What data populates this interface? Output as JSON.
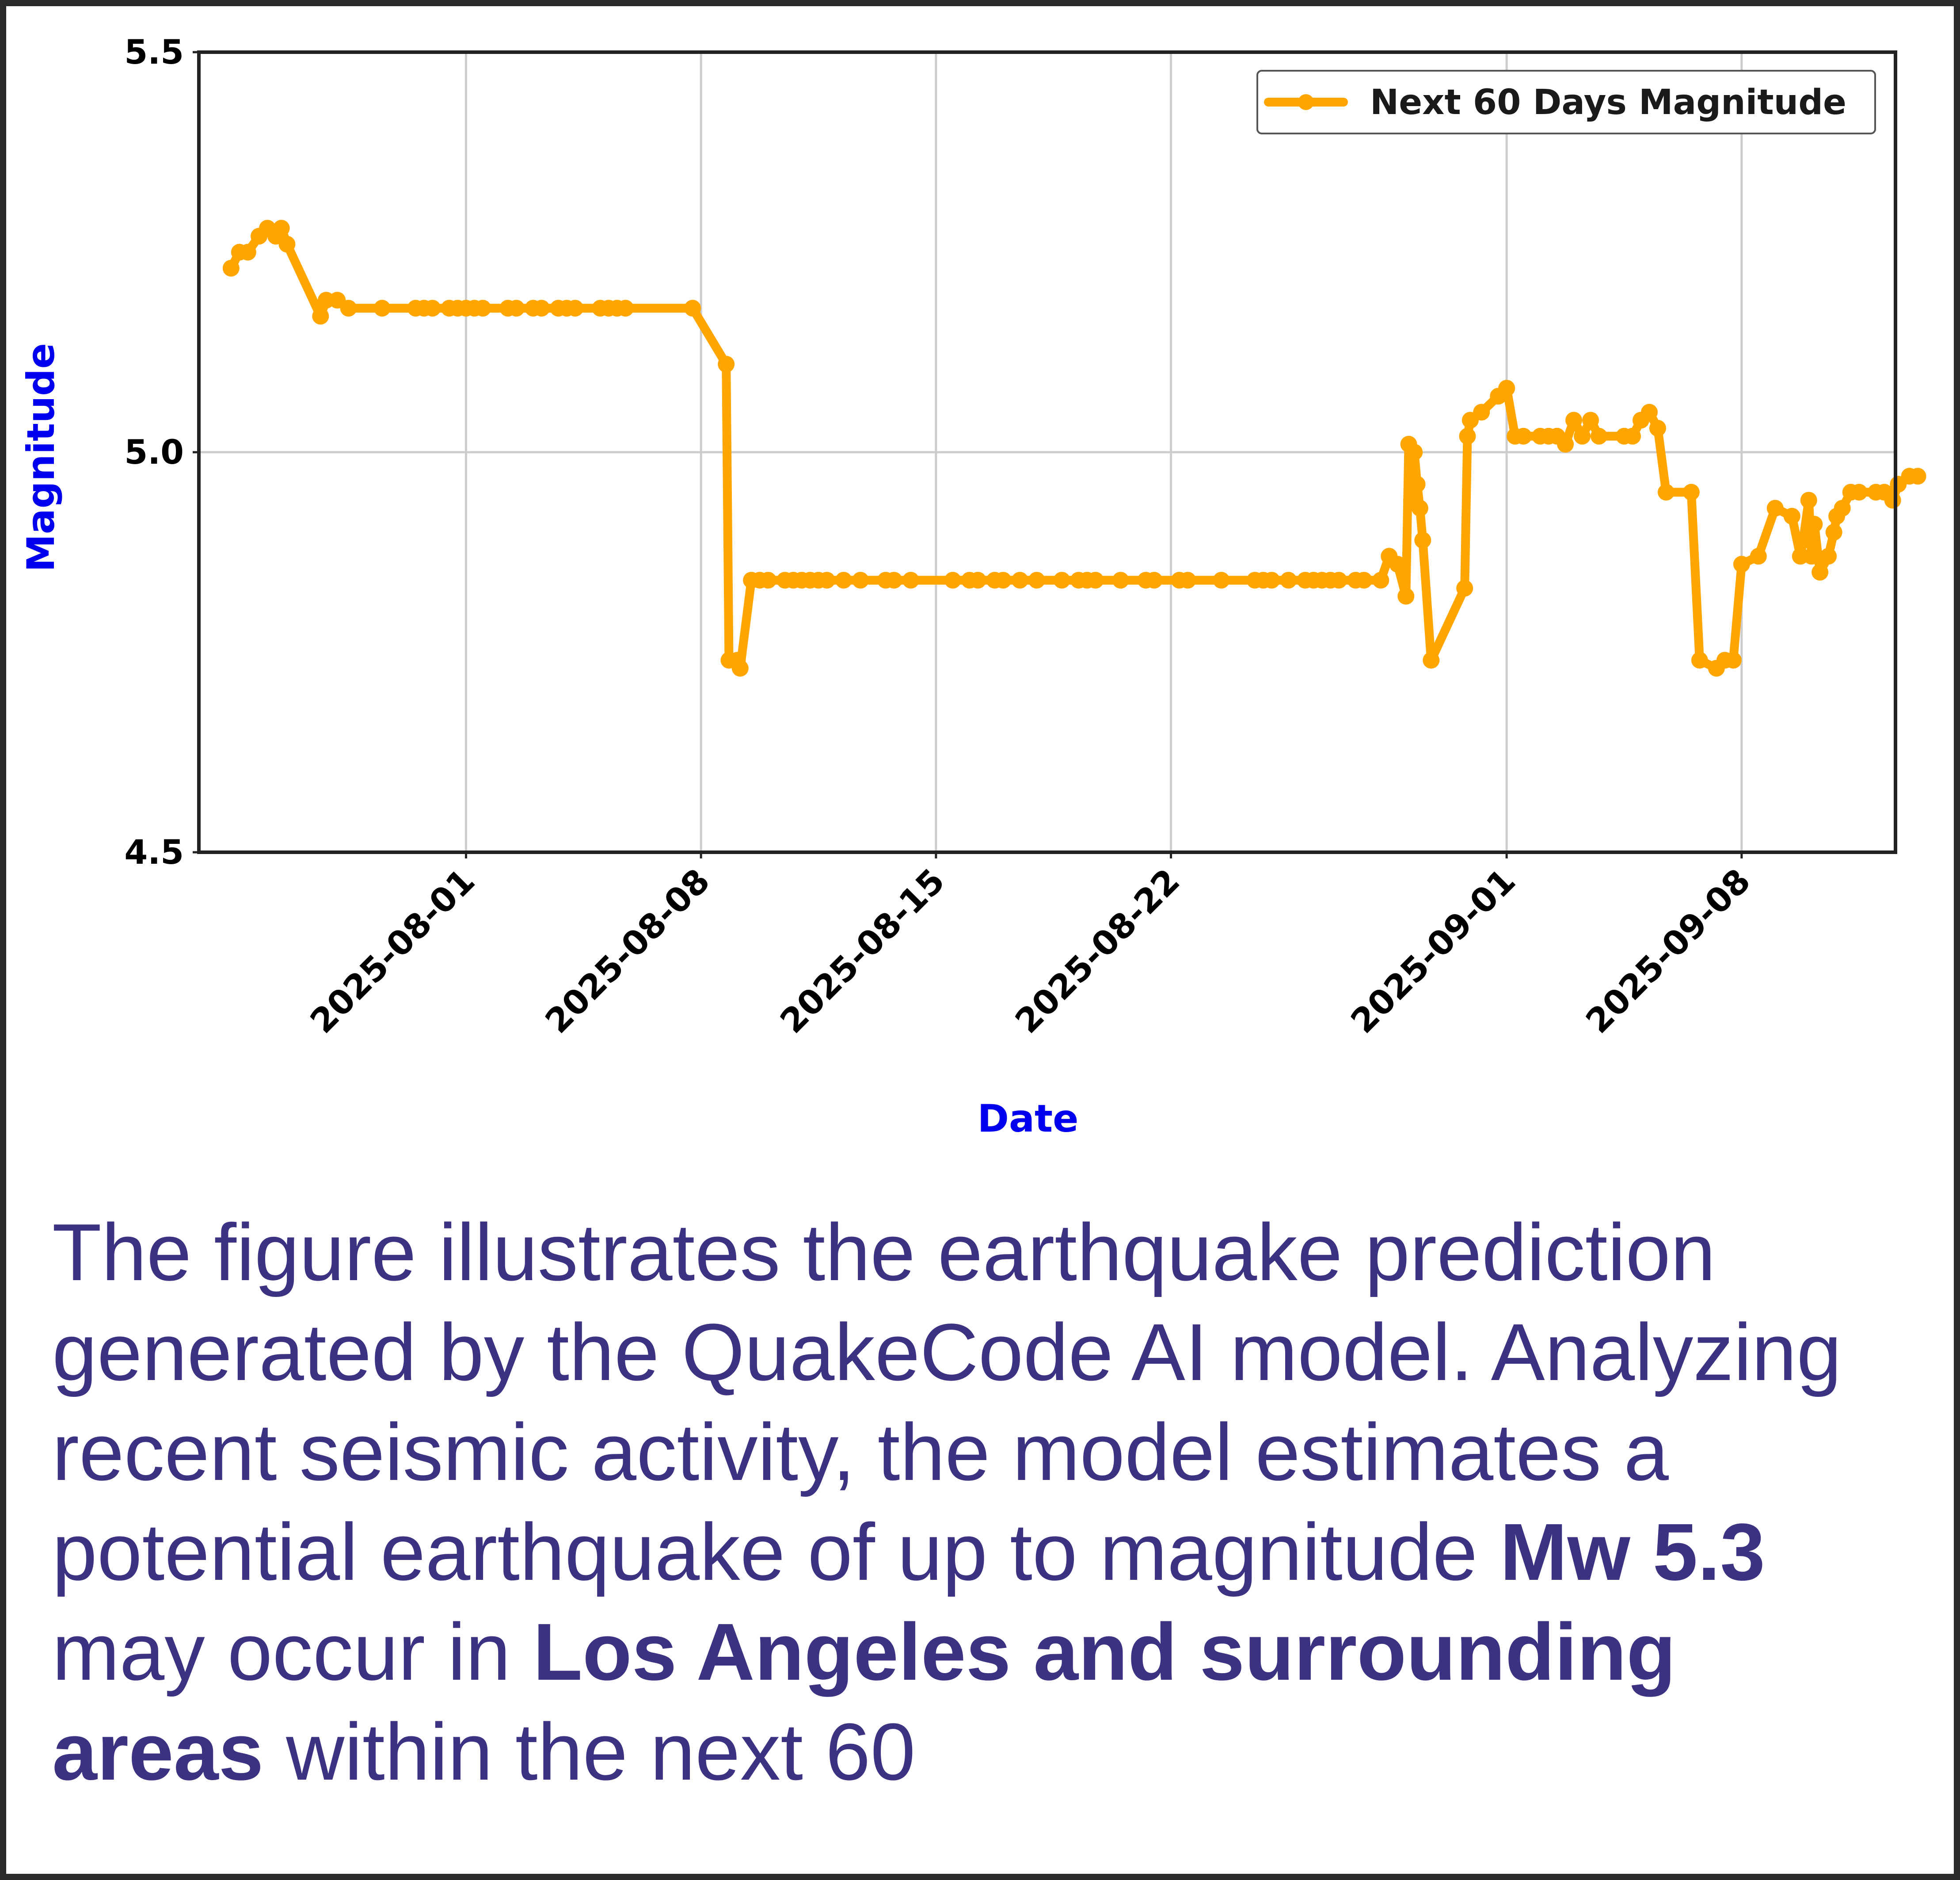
{
  "chart_data": {
    "type": "line",
    "title": "",
    "xlabel": "Date",
    "ylabel": "Magnitude",
    "ylim": [
      4.5,
      5.5
    ],
    "xlim": [
      "2025-07-24T01:00",
      "2025-09-12T14:00"
    ],
    "yticks": [
      "4.5",
      "5.0",
      "5.5"
    ],
    "xticks": [
      "2025-08-01",
      "2025-08-08",
      "2025-08-15",
      "2025-08-22",
      "2025-09-01",
      "2025-09-08"
    ],
    "grid": true,
    "legend_position": "top-right",
    "colors": {
      "series": "#ffa500",
      "axis_title": "#0000ee",
      "caption": "#3b3382",
      "grid": "#cccccc"
    },
    "series": [
      {
        "name": "Next 60 Days Magnitude",
        "points": [
          [
            "2025-07-25T00:00",
            5.23
          ],
          [
            "2025-07-25T06:00",
            5.25
          ],
          [
            "2025-07-25T12:00",
            5.25
          ],
          [
            "2025-07-25T20:00",
            5.27
          ],
          [
            "2025-07-26T02:00",
            5.28
          ],
          [
            "2025-07-26T08:00",
            5.27
          ],
          [
            "2025-07-26T12:00",
            5.28
          ],
          [
            "2025-07-26T16:00",
            5.26
          ],
          [
            "2025-07-27T16:00",
            5.17
          ],
          [
            "2025-07-27T20:00",
            5.19
          ],
          [
            "2025-07-28T04:00",
            5.19
          ],
          [
            "2025-07-28T12:00",
            5.18
          ],
          [
            "2025-07-29T12:00",
            5.18
          ],
          [
            "2025-07-30T12:00",
            5.18
          ],
          [
            "2025-07-30T18:00",
            5.18
          ],
          [
            "2025-07-31T00:00",
            5.18
          ],
          [
            "2025-07-31T12:00",
            5.18
          ],
          [
            "2025-07-31T18:00",
            5.18
          ],
          [
            "2025-08-01T00:00",
            5.18
          ],
          [
            "2025-08-01T06:00",
            5.18
          ],
          [
            "2025-08-01T12:00",
            5.18
          ],
          [
            "2025-08-02T06:00",
            5.18
          ],
          [
            "2025-08-02T12:00",
            5.18
          ],
          [
            "2025-08-03T00:00",
            5.18
          ],
          [
            "2025-08-03T06:00",
            5.18
          ],
          [
            "2025-08-03T18:00",
            5.18
          ],
          [
            "2025-08-04T00:00",
            5.18
          ],
          [
            "2025-08-04T06:00",
            5.18
          ],
          [
            "2025-08-05T00:00",
            5.18
          ],
          [
            "2025-08-05T06:00",
            5.18
          ],
          [
            "2025-08-05T12:00",
            5.18
          ],
          [
            "2025-08-05T18:00",
            5.18
          ],
          [
            "2025-08-07T18:00",
            5.18
          ],
          [
            "2025-08-08T18:00",
            5.11
          ],
          [
            "2025-08-08T20:00",
            4.74
          ],
          [
            "2025-08-09T02:00",
            4.74
          ],
          [
            "2025-08-09T04:00",
            4.73
          ],
          [
            "2025-08-09T12:00",
            4.84
          ],
          [
            "2025-08-09T18:00",
            4.84
          ],
          [
            "2025-08-10T00:00",
            4.84
          ],
          [
            "2025-08-10T12:00",
            4.84
          ],
          [
            "2025-08-10T18:00",
            4.84
          ],
          [
            "2025-08-11T00:00",
            4.84
          ],
          [
            "2025-08-11T06:00",
            4.84
          ],
          [
            "2025-08-11T12:00",
            4.84
          ],
          [
            "2025-08-11T18:00",
            4.84
          ],
          [
            "2025-08-12T06:00",
            4.84
          ],
          [
            "2025-08-12T18:00",
            4.84
          ],
          [
            "2025-08-13T12:00",
            4.84
          ],
          [
            "2025-08-13T18:00",
            4.84
          ],
          [
            "2025-08-14T06:00",
            4.84
          ],
          [
            "2025-08-15T12:00",
            4.84
          ],
          [
            "2025-08-16T00:00",
            4.84
          ],
          [
            "2025-08-16T06:00",
            4.84
          ],
          [
            "2025-08-16T18:00",
            4.84
          ],
          [
            "2025-08-17T00:00",
            4.84
          ],
          [
            "2025-08-17T12:00",
            4.84
          ],
          [
            "2025-08-18T00:00",
            4.84
          ],
          [
            "2025-08-18T18:00",
            4.84
          ],
          [
            "2025-08-19T06:00",
            4.84
          ],
          [
            "2025-08-19T12:00",
            4.84
          ],
          [
            "2025-08-19T18:00",
            4.84
          ],
          [
            "2025-08-20T12:00",
            4.84
          ],
          [
            "2025-08-21T06:00",
            4.84
          ],
          [
            "2025-08-21T12:00",
            4.84
          ],
          [
            "2025-08-22T06:00",
            4.84
          ],
          [
            "2025-08-22T12:00",
            4.84
          ],
          [
            "2025-08-23T12:00",
            4.84
          ],
          [
            "2025-08-24T12:00",
            4.84
          ],
          [
            "2025-08-24T18:00",
            4.84
          ],
          [
            "2025-08-25T00:00",
            4.84
          ],
          [
            "2025-08-25T12:00",
            4.84
          ],
          [
            "2025-08-26T00:00",
            4.84
          ],
          [
            "2025-08-26T06:00",
            4.84
          ],
          [
            "2025-08-26T12:00",
            4.84
          ],
          [
            "2025-08-26T18:00",
            4.84
          ],
          [
            "2025-08-27T00:00",
            4.84
          ],
          [
            "2025-08-27T12:00",
            4.84
          ],
          [
            "2025-08-27T18:00",
            4.84
          ],
          [
            "2025-08-28T06:00",
            4.84
          ],
          [
            "2025-08-28T12:00",
            4.87
          ],
          [
            "2025-08-28T18:00",
            4.86
          ],
          [
            "2025-08-29T00:00",
            4.82
          ],
          [
            "2025-08-29T02:00",
            5.01
          ],
          [
            "2025-08-29T04:00",
            4.94
          ],
          [
            "2025-08-29T06:00",
            5.0
          ],
          [
            "2025-08-29T08:00",
            4.96
          ],
          [
            "2025-08-29T10:00",
            4.93
          ],
          [
            "2025-08-29T12:00",
            4.89
          ],
          [
            "2025-08-29T18:00",
            4.74
          ],
          [
            "2025-08-30T18:00",
            4.83
          ],
          [
            "2025-08-30T20:00",
            5.02
          ],
          [
            "2025-08-30T22:00",
            5.04
          ],
          [
            "2025-08-31T06:00",
            5.05
          ],
          [
            "2025-08-31T18:00",
            5.07
          ],
          [
            "2025-09-01T00:00",
            5.08
          ],
          [
            "2025-09-01T06:00",
            5.02
          ],
          [
            "2025-09-01T12:00",
            5.02
          ],
          [
            "2025-09-02T00:00",
            5.02
          ],
          [
            "2025-09-02T06:00",
            5.02
          ],
          [
            "2025-09-02T12:00",
            5.02
          ],
          [
            "2025-09-02T18:00",
            5.01
          ],
          [
            "2025-09-03T00:00",
            5.04
          ],
          [
            "2025-09-03T06:00",
            5.02
          ],
          [
            "2025-09-03T12:00",
            5.04
          ],
          [
            "2025-09-03T18:00",
            5.02
          ],
          [
            "2025-09-04T12:00",
            5.02
          ],
          [
            "2025-09-04T18:00",
            5.02
          ],
          [
            "2025-09-05T00:00",
            5.04
          ],
          [
            "2025-09-05T06:00",
            5.05
          ],
          [
            "2025-09-05T12:00",
            5.03
          ],
          [
            "2025-09-05T18:00",
            4.95
          ],
          [
            "2025-09-06T12:00",
            4.95
          ],
          [
            "2025-09-06T18:00",
            4.74
          ],
          [
            "2025-09-07T06:00",
            4.73
          ],
          [
            "2025-09-07T12:00",
            4.74
          ],
          [
            "2025-09-07T18:00",
            4.74
          ],
          [
            "2025-09-08T00:00",
            4.86
          ],
          [
            "2025-09-08T12:00",
            4.87
          ],
          [
            "2025-09-09T00:00",
            4.93
          ],
          [
            "2025-09-09T12:00",
            4.92
          ],
          [
            "2025-09-09T18:00",
            4.87
          ],
          [
            "2025-09-09T20:00",
            4.89
          ],
          [
            "2025-09-10T00:00",
            4.94
          ],
          [
            "2025-09-10T02:00",
            4.87
          ],
          [
            "2025-09-10T04:00",
            4.91
          ],
          [
            "2025-09-10T08:00",
            4.85
          ],
          [
            "2025-09-10T14:00",
            4.87
          ],
          [
            "2025-09-10T18:00",
            4.9
          ],
          [
            "2025-09-10T20:00",
            4.92
          ],
          [
            "2025-09-11T00:00",
            4.93
          ],
          [
            "2025-09-11T06:00",
            4.95
          ],
          [
            "2025-09-11T12:00",
            4.95
          ],
          [
            "2025-09-12T00:00",
            4.95
          ],
          [
            "2025-09-12T06:00",
            4.95
          ],
          [
            "2025-09-12T12:00",
            4.94
          ],
          [
            "2025-09-12T16:00",
            4.96
          ],
          [
            "2025-09-13T00:00",
            4.97
          ],
          [
            "2025-09-13T06:00",
            4.97
          ]
        ]
      }
    ]
  },
  "caption": {
    "part1": "The figure illustrates the earthquake prediction generated by the QuakeCode AI model. Analyzing recent seismic activity, the model estimates a potential earthquake of up to magnitude ",
    "bold1": "Mw 5.3",
    "part2": " may occur in ",
    "bold2": "Los Angeles and surrounding areas",
    "part3": " within the next 60"
  }
}
